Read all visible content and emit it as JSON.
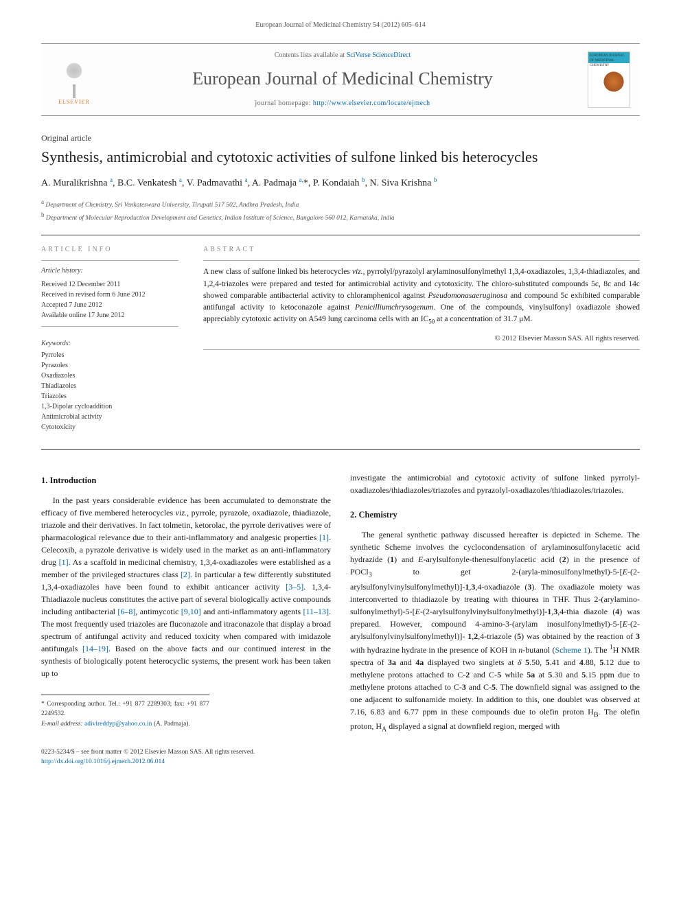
{
  "page_header": "European Journal of Medicinal Chemistry 54 (2012) 605–614",
  "masthead": {
    "publisher": "ELSEVIER",
    "contents_prefix": "Contents lists available at ",
    "contents_link": "SciVerse ScienceDirect",
    "journal_name": "European Journal of Medicinal Chemistry",
    "homepage_prefix": "journal homepage: ",
    "homepage_url": "http://www.elsevier.com/locate/ejmech",
    "cover_caption": "EUROPEAN JOURNAL OF MEDICINAL CHEMISTRY"
  },
  "article": {
    "type": "Original article",
    "title": "Synthesis, antimicrobial and cytotoxic activities of sulfone linked bis heterocycles"
  },
  "authors_html": "A. Muralikrishna <sup>a</sup>, B.C. Venkatesh <sup>a</sup>, V. Padmavathi <sup>a</sup>, A. Padmaja <sup>a,</sup>*, P. Kondaiah <sup>b</sup>, N. Siva Krishna <sup>b</sup>",
  "affiliations": {
    "a": "Department of Chemistry, Sri Venkateswara University, Tirupati 517 502, Andhra Pradesh, India",
    "b": "Department of Molecular Reproduction Development and Genetics, Indian Institute of Science, Bangalore 560 012, Karnataka, India"
  },
  "info": {
    "label": "ARTICLE INFO",
    "history_label": "Article history:",
    "received": "Received 12 December 2011",
    "revised": "Received in revised form 6 June 2012",
    "accepted": "Accepted 7 June 2012",
    "online": "Available online 17 June 2012",
    "keywords_label": "Keywords:",
    "keywords": [
      "Pyrroles",
      "Pyrazoles",
      "Oxadiazoles",
      "Thiadiazoles",
      "Triazoles",
      "1,3-Dipolar cycloaddition",
      "Antimicrobial activity",
      "Cytotoxicity"
    ]
  },
  "abstract": {
    "label": "ABSTRACT",
    "text": "A new class of sulfone linked bis heterocycles viz., pyrrolyl/pyrazolyl arylaminosulfonylmethyl 1,3,4-oxadiazoles, 1,3,4-thiadiazoles, and 1,2,4-triazoles were prepared and tested for antimicrobial activity and cytotoxicity. The chloro-substituted compounds 5c, 8c and 14c showed comparable antibacterial activity to chloramphenicol against Pseudomonasaeruginosa and compound 5c exhibited comparable antifungal activity to ketoconazole against Penicilliumchrysogenum. One of the compounds, vinylsulfonyl oxadiazole showed appreciably cytotoxic activity on A549 lung carcinoma cells with an IC₅₀ at a concentration of 31.7 μM.",
    "copyright": "© 2012 Elsevier Masson SAS. All rights reserved."
  },
  "sections": {
    "intro_heading": "1. Introduction",
    "intro_p1": "In the past years considerable evidence has been accumulated to demonstrate the efficacy of five membered heterocycles viz., pyrrole, pyrazole, oxadiazole, thiadiazole, triazole and their derivatives. In fact tolmetin, ketorolac, the pyrrole derivatives were of pharmacological relevance due to their anti-inflammatory and analgesic properties [1]. Celecoxib, a pyrazole derivative is widely used in the market as an anti-inflammatory drug [1]. As a scaffold in medicinal chemistry, 1,3,4-oxadiazoles were established as a member of the privileged structures class [2]. In particular a few differently substituted 1,3,4-oxadiazoles have been found to exhibit anticancer activity [3–5]. 1,3,4-Thiadiazole nucleus constitutes the active part of several biologically active compounds including antibacterial [6–8], antimycotic [9,10] and anti-inflammatory agents [11–13]. The most frequently used triazoles are fluconazole and itraconazole that display a broad spectrum of antifungal activity and reduced toxicity when compared with imidazole antifungals [14–19]. Based on the above facts and our continued interest in the synthesis of biologically potent heterocyclic systems, the present work has been taken up to ",
    "intro_p1_tail": "investigate the antimicrobial and cytotoxic activity of sulfone linked pyrrolyl-oxadiazoles/thiadiazoles/triazoles and pyrazolyl-oxadiazoles/thiadiazoles/triazoles.",
    "chem_heading": "2. Chemistry",
    "chem_p1": "The general synthetic pathway discussed hereafter is depicted in Scheme. The synthetic Scheme involves the cyclocondensation of arylaminosulfonylacetic acid hydrazide (1) and E-arylsulfonyle-thenesulfonylacetic acid (2) in the presence of POCl₃ to get 2-(aryla-minosulfonylmethyl)-5-[E-(2-arylsulfonylvinylsulfonylmethyl)]-1,3,4-oxadiazole (3). The oxadiazole moiety was interconverted to thiadiazole by treating with thiourea in THF. Thus 2-(arylamino-sulfonylmethyl)-5-[E-(2-arylsulfonylvinylsulfonylmethyl)]-1,3,4-thia diazole (4) was prepared. However, compound 4-amino-3-(arylam inosulfonylmethyl)-5-[E-(2-arylsulfonylvinylsulfonylmethyl)]- 1,2,4-triazole (5) was obtained by the reaction of 3 with hydrazine hydrate in the presence of KOH in n-butanol (Scheme 1). The ¹H NMR spectra of 3a and 4a displayed two singlets at δ 5.50, 5.41 and 4.88, 5.12 due to methylene protons attached to C-2 and C-5 while 5a at 5.30 and 5.15 ppm due to methylene protons attached to C-3 and C-5. The downfield signal was assigned to the one adjacent to sulfonamide moiety. In addition to this, one doublet was observed at 7.16, 6.83 and 6.77 ppm in these compounds due to olefin proton HB. The olefin proton, HA displayed a signal at downfield region, merged with"
  },
  "footnote": {
    "corr": "* Corresponding author. Tel.: +91 877 2289303; fax: +91 877 2249532.",
    "email_label": "E-mail address: ",
    "email": "adivireddyp@yahoo.co.in",
    "email_owner": " (A. Padmaja)."
  },
  "footer": {
    "left_line1": "0223-5234/$ – see front matter © 2012 Elsevier Masson SAS. All rights reserved.",
    "doi": "http://dx.doi.org/10.1016/j.ejmech.2012.06.014"
  },
  "colors": {
    "link": "#0066b3",
    "publisher": "#e9711c",
    "text": "#1a1a1a",
    "muted": "#666666",
    "rule": "#333333"
  },
  "typography": {
    "body_pt": 12,
    "title_pt": 22,
    "journal_pt": 26,
    "meta_pt": 10
  }
}
